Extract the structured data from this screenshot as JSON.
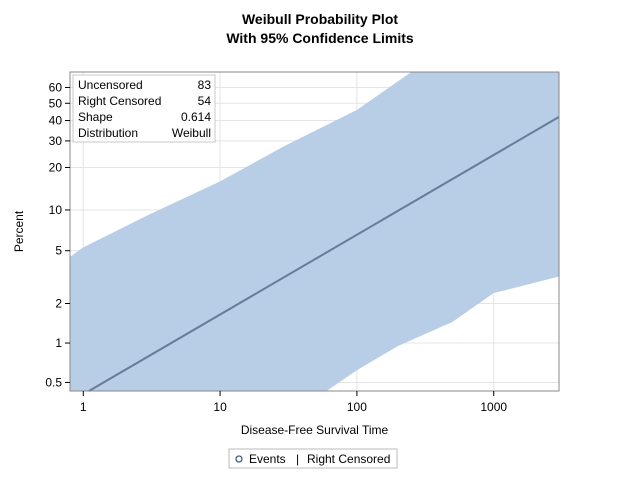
{
  "chart_data": {
    "type": "line",
    "title": "Weibull Probability Plot",
    "subtitle": "With 95% Confidence Limits",
    "xlabel": "Disease-Free Survival Time",
    "ylabel": "Percent",
    "x_scale": "log",
    "y_scale": "weibull",
    "xlim": [
      0.8,
      3000
    ],
    "ylim": [
      0.43,
      70
    ],
    "x_ticks": [
      1,
      10,
      100,
      1000
    ],
    "x_tick_labels": [
      "1",
      "10",
      "100",
      "1000"
    ],
    "y_ticks": [
      0.5,
      1,
      2,
      5,
      10,
      20,
      30,
      40,
      50,
      60
    ],
    "y_tick_labels": [
      "0.5",
      "1",
      "2",
      "5",
      "10",
      "20",
      "30",
      "40",
      "50",
      "60"
    ],
    "grid": true,
    "fit_line": {
      "x": [
        1.1,
        3000
      ],
      "y": [
        0.43,
        42
      ]
    },
    "confidence_band": {
      "upper": {
        "x": [
          0.8,
          1,
          3,
          10,
          30,
          100,
          250
        ],
        "y": [
          4.5,
          5.3,
          9.2,
          16,
          28,
          46,
          70
        ]
      },
      "lower": {
        "x": [
          60,
          100,
          200,
          500,
          1000,
          3000
        ],
        "y": [
          0.43,
          0.62,
          0.95,
          1.45,
          2.4,
          3.2
        ]
      }
    },
    "inset_table": [
      {
        "label": "Uncensored",
        "value": "83"
      },
      {
        "label": "Right Censored",
        "value": "54"
      },
      {
        "label": "Shape",
        "value": "0.614"
      },
      {
        "label": "Distribution",
        "value": "Weibull"
      }
    ],
    "legend": {
      "placement": "bottom",
      "items": [
        {
          "symbol": "o",
          "label": "Events"
        },
        {
          "symbol": "|",
          "label": "Right Censored"
        }
      ]
    },
    "colors": {
      "band": "#b8cde6",
      "line": "#6a7a9a",
      "marker": "#3f5c94",
      "grid": "#e4e4e4",
      "frame": "#888888"
    }
  }
}
